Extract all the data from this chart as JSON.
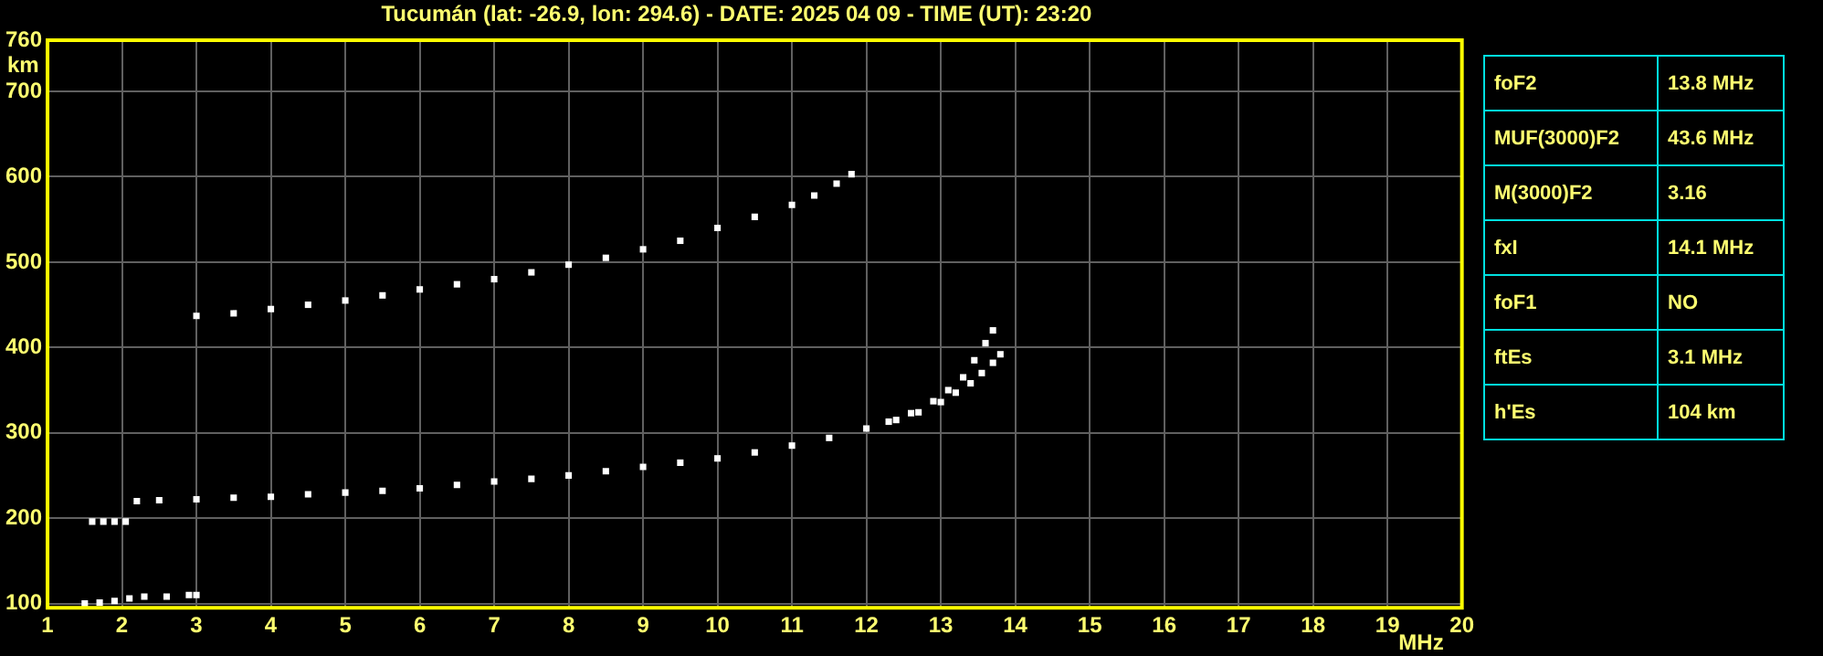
{
  "chart_data": [
    {
      "type": "scatter",
      "title": "Tucumán (lat: -26.9, lon: 294.6) - DATE: 2025 04 09 - TIME (UT): 23:20",
      "xlabel": "MHz",
      "ylabel": "km",
      "xlim": [
        1,
        20
      ],
      "xticks": [
        1,
        2,
        3,
        4,
        5,
        6,
        7,
        8,
        9,
        10,
        11,
        12,
        13,
        14,
        15,
        16,
        17,
        18,
        19,
        20
      ],
      "ylim": [
        95,
        760
      ],
      "yticks": [
        100,
        200,
        300,
        400,
        500,
        600,
        700,
        760
      ],
      "grid": true,
      "legend": false,
      "marker": "square",
      "series": [
        {
          "color": "#ffffff",
          "x": [
            2.2,
            2.5,
            3,
            3.5,
            4,
            4.5,
            5,
            5.5,
            6,
            6.5,
            7,
            7.5,
            8,
            8.5,
            9,
            9.5,
            10,
            10.5,
            11,
            11.5,
            12,
            12.3,
            12.6,
            12.9,
            13.1,
            13.3,
            13.45,
            13.6,
            13.7
          ],
          "values": [
            220,
            221,
            222,
            224,
            225,
            228,
            230,
            232,
            235,
            239,
            243,
            246,
            250,
            255,
            260,
            265,
            270,
            277,
            285,
            294,
            305,
            313,
            323,
            337,
            350,
            365,
            385,
            405,
            420
          ]
        },
        {
          "color": "#ffffff",
          "x": [
            12.4,
            12.7,
            13,
            13.2,
            13.4,
            13.55,
            13.7,
            13.8
          ],
          "values": [
            315,
            324,
            336,
            347,
            358,
            370,
            382,
            392
          ]
        },
        {
          "color": "#ffffff",
          "x": [
            3,
            3.5,
            4,
            4.5,
            5,
            5.5,
            6,
            6.5,
            7,
            7.5,
            8,
            8.5,
            9,
            9.5,
            10,
            10.5,
            11,
            11.3,
            11.6,
            11.8
          ],
          "values": [
            437,
            440,
            445,
            450,
            455,
            461,
            468,
            474,
            480,
            488,
            497,
            505,
            515,
            525,
            540,
            553,
            567,
            578,
            592,
            603
          ]
        },
        {
          "color": "#ffffff",
          "x": [
            1.5,
            1.7,
            1.9,
            2.1,
            2.3,
            2.6,
            2.9,
            3
          ],
          "values": [
            100,
            101,
            103,
            106,
            108,
            108,
            110,
            110
          ]
        },
        {
          "color": "#ffffff",
          "x": [
            1.6,
            1.75,
            1.9,
            2.05
          ],
          "values": [
            196,
            196,
            196,
            196
          ]
        }
      ]
    },
    {
      "type": "other",
      "annotations": [
        "foF2",
        "13.8 MHz",
        "MUF(3000)F2",
        "43.6 MHz",
        "M(3000)F2",
        "3.16",
        "fxI",
        "14.1 MHz",
        "foF1",
        "NO",
        "ftEs",
        "3.1 MHz",
        "h'Es",
        "104 km"
      ]
    }
  ]
}
